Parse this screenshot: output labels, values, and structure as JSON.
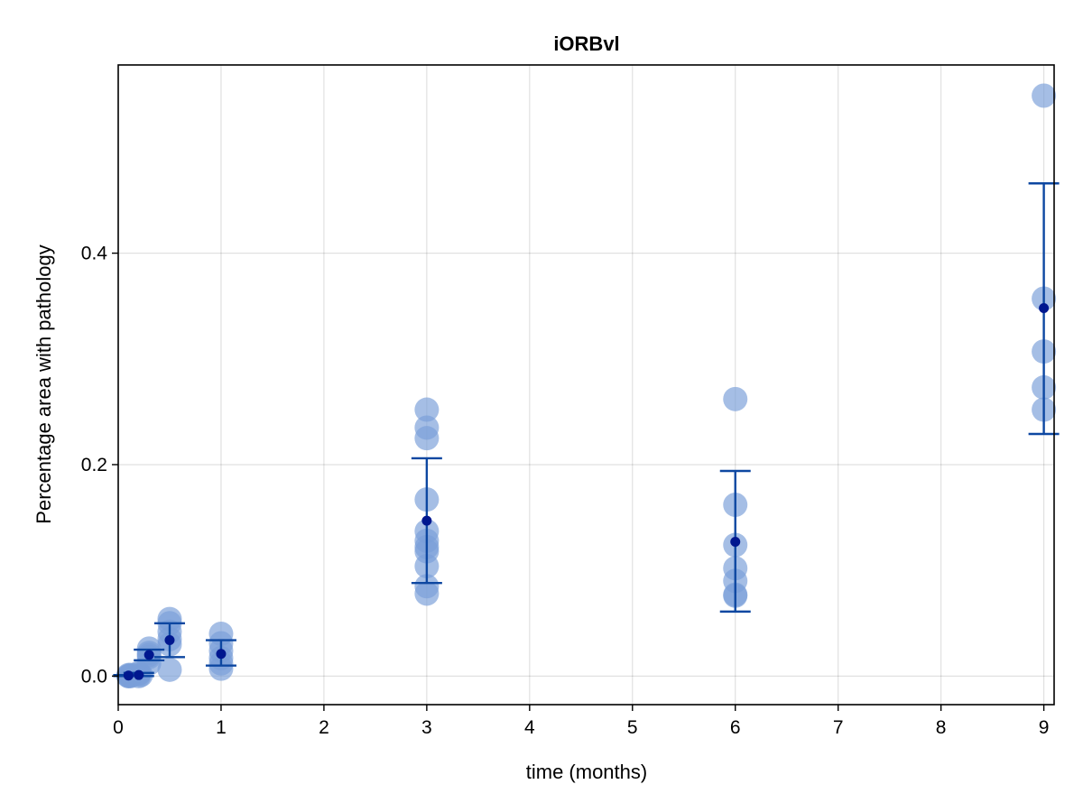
{
  "chart_data": {
    "type": "scatter",
    "title": "iORBvl",
    "xlabel": "time (months)",
    "ylabel": "Percentage area with pathology",
    "xlim": [
      0,
      9.1
    ],
    "ylim": [
      -0.027,
      0.578
    ],
    "xticks": [
      0,
      1,
      2,
      3,
      4,
      5,
      6,
      7,
      8,
      9
    ],
    "yticks": [
      0.0,
      0.2,
      0.4
    ],
    "ytick_labels": [
      "0.0",
      "0.2",
      "0.4"
    ],
    "grid": true,
    "colors": {
      "points": "#7b9fd8",
      "errorbar": "#0d47a1",
      "mean": "#00178f"
    },
    "points": [
      {
        "x": 0.1,
        "y": 0.0
      },
      {
        "x": 0.1,
        "y": 0.0
      },
      {
        "x": 0.1,
        "y": 0.001
      },
      {
        "x": 0.12,
        "y": 0.0
      },
      {
        "x": 0.12,
        "y": 0.001
      },
      {
        "x": 0.2,
        "y": 0.0
      },
      {
        "x": 0.2,
        "y": 0.002
      },
      {
        "x": 0.2,
        "y": 0.003
      },
      {
        "x": 0.22,
        "y": 0.001
      },
      {
        "x": 0.3,
        "y": 0.012
      },
      {
        "x": 0.3,
        "y": 0.018
      },
      {
        "x": 0.3,
        "y": 0.022
      },
      {
        "x": 0.3,
        "y": 0.026
      },
      {
        "x": 0.3,
        "y": 0.02
      },
      {
        "x": 0.5,
        "y": 0.006
      },
      {
        "x": 0.5,
        "y": 0.03
      },
      {
        "x": 0.5,
        "y": 0.035
      },
      {
        "x": 0.5,
        "y": 0.042
      },
      {
        "x": 0.5,
        "y": 0.05
      },
      {
        "x": 0.5,
        "y": 0.054
      },
      {
        "x": 1,
        "y": 0.007
      },
      {
        "x": 1,
        "y": 0.012
      },
      {
        "x": 1,
        "y": 0.017
      },
      {
        "x": 1,
        "y": 0.024
      },
      {
        "x": 1,
        "y": 0.031
      },
      {
        "x": 1,
        "y": 0.04
      },
      {
        "x": 3,
        "y": 0.252
      },
      {
        "x": 3,
        "y": 0.235
      },
      {
        "x": 3,
        "y": 0.225
      },
      {
        "x": 3,
        "y": 0.167
      },
      {
        "x": 3,
        "y": 0.137
      },
      {
        "x": 3,
        "y": 0.128
      },
      {
        "x": 3,
        "y": 0.122
      },
      {
        "x": 3,
        "y": 0.118
      },
      {
        "x": 3,
        "y": 0.104
      },
      {
        "x": 3,
        "y": 0.085
      },
      {
        "x": 3,
        "y": 0.078
      },
      {
        "x": 6,
        "y": 0.262
      },
      {
        "x": 6,
        "y": 0.162
      },
      {
        "x": 6,
        "y": 0.124
      },
      {
        "x": 6,
        "y": 0.102
      },
      {
        "x": 6,
        "y": 0.09
      },
      {
        "x": 6,
        "y": 0.077
      },
      {
        "x": 6,
        "y": 0.076
      },
      {
        "x": 9,
        "y": 0.549
      },
      {
        "x": 9,
        "y": 0.357
      },
      {
        "x": 9,
        "y": 0.307
      },
      {
        "x": 9,
        "y": 0.273
      },
      {
        "x": 9,
        "y": 0.252
      }
    ],
    "summary": [
      {
        "x": 0.1,
        "mean": 0.0005,
        "low": 0.0,
        "high": 0.001
      },
      {
        "x": 0.2,
        "mean": 0.001,
        "low": 0.0,
        "high": 0.003
      },
      {
        "x": 0.3,
        "mean": 0.02,
        "low": 0.015,
        "high": 0.025
      },
      {
        "x": 0.5,
        "mean": 0.034,
        "low": 0.018,
        "high": 0.05
      },
      {
        "x": 1,
        "mean": 0.021,
        "low": 0.01,
        "high": 0.034
      },
      {
        "x": 3,
        "mean": 0.147,
        "low": 0.088,
        "high": 0.206
      },
      {
        "x": 6,
        "mean": 0.127,
        "low": 0.061,
        "high": 0.194
      },
      {
        "x": 9,
        "mean": 0.348,
        "low": 0.229,
        "high": 0.466
      }
    ]
  }
}
